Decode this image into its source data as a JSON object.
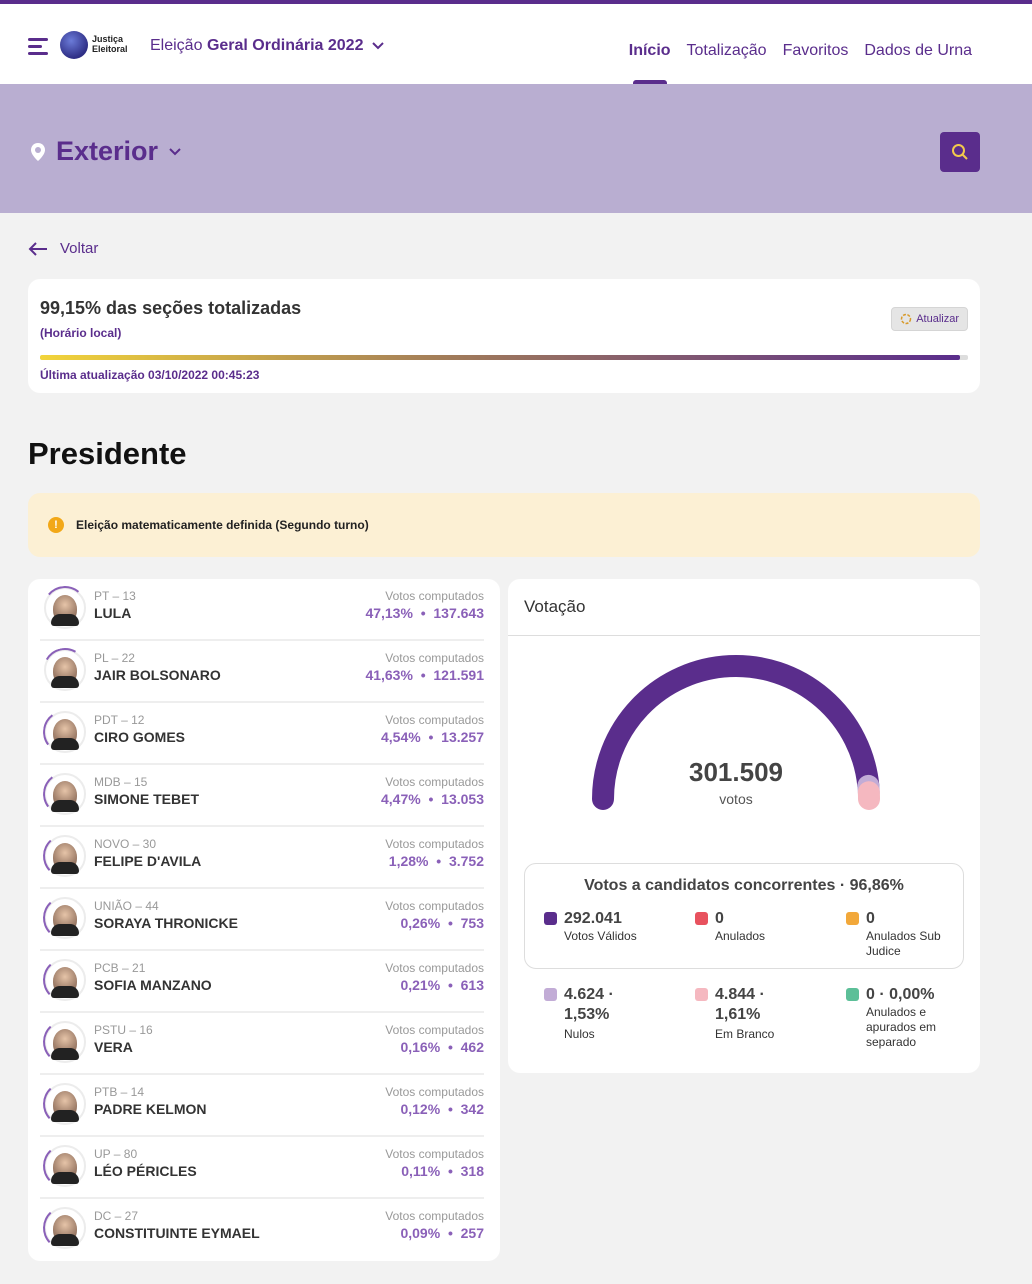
{
  "header": {
    "election_prefix": "Eleição",
    "election_name": "Geral Ordinária 2022",
    "logo_line1": "Justiça",
    "logo_line2": "Eleitoral",
    "nav": [
      "Início",
      "Totalização",
      "Favoritos",
      "Dados de Urna"
    ],
    "active_nav": "Início"
  },
  "location": {
    "name": "Exterior"
  },
  "back_label": "Voltar",
  "progress": {
    "title": "99,15% das seções totalizadas",
    "subtitle": "(Horário local)",
    "update_button": "Atualizar",
    "fraction": 0.9915,
    "last_update": "Última atualização 03/10/2022 00:45:23"
  },
  "section_title": "Presidente",
  "alert": "Eleição matematicamente definida (Segundo turno)",
  "candidates_votes_label": "Votos computados",
  "candidates": [
    {
      "party": "PT – 13",
      "name": "LULA",
      "pct": "47,13%",
      "votes": "137.643",
      "share": 0.4713
    },
    {
      "party": "PL – 22",
      "name": "JAIR BOLSONARO",
      "pct": "41,63%",
      "votes": "121.591",
      "share": 0.4163
    },
    {
      "party": "PDT – 12",
      "name": "CIRO GOMES",
      "pct": "4,54%",
      "votes": "13.257",
      "share": 0.0454
    },
    {
      "party": "MDB – 15",
      "name": "SIMONE TEBET",
      "pct": "4,47%",
      "votes": "13.053",
      "share": 0.0447
    },
    {
      "party": "NOVO – 30",
      "name": "FELIPE D'AVILA",
      "pct": "1,28%",
      "votes": "3.752",
      "share": 0.0128
    },
    {
      "party": "UNIÃO – 44",
      "name": "SORAYA THRONICKE",
      "pct": "0,26%",
      "votes": "753",
      "share": 0.0026
    },
    {
      "party": "PCB – 21",
      "name": "SOFIA MANZANO",
      "pct": "0,21%",
      "votes": "613",
      "share": 0.0021
    },
    {
      "party": "PSTU – 16",
      "name": "VERA",
      "pct": "0,16%",
      "votes": "462",
      "share": 0.0016
    },
    {
      "party": "PTB – 14",
      "name": "PADRE KELMON",
      "pct": "0,12%",
      "votes": "342",
      "share": 0.0012
    },
    {
      "party": "UP – 80",
      "name": "LÉO PÉRICLES",
      "pct": "0,11%",
      "votes": "318",
      "share": 0.0011
    },
    {
      "party": "DC – 27",
      "name": "CONSTITUINTE EYMAEL",
      "pct": "0,09%",
      "votes": "257",
      "share": 0.0009
    }
  ],
  "votacao": {
    "title": "Votação",
    "total": "301.509",
    "total_label": "votos",
    "gauge_shares": {
      "valid": 0.9686,
      "nulos": 0.0153,
      "branco": 0.0161
    },
    "concorrentes_title": "Votos a candidatos concorrentes · 96,86%",
    "stats": [
      {
        "value": "292.041",
        "label": "Votos Válidos",
        "color": "#5a2d8c"
      },
      {
        "value": "0",
        "label": "Anulados",
        "color": "#e8525e"
      },
      {
        "value": "0",
        "label": "Anulados Sub Judice",
        "color": "#f2a83a"
      },
      {
        "value": "4.624 · 1,53%",
        "label": "Nulos",
        "color": "#c2acd6"
      },
      {
        "value": "4.844 · 1,61%",
        "label": "Em Branco",
        "color": "#f5b8c0"
      },
      {
        "value": "0 · 0,00%",
        "label": "Anulados e apurados em separado",
        "color": "#5cbf98"
      }
    ]
  },
  "colors": {
    "brand": "#5a2d8c",
    "accent_light": "#b9aed1",
    "vote_text": "#8a60b8"
  }
}
